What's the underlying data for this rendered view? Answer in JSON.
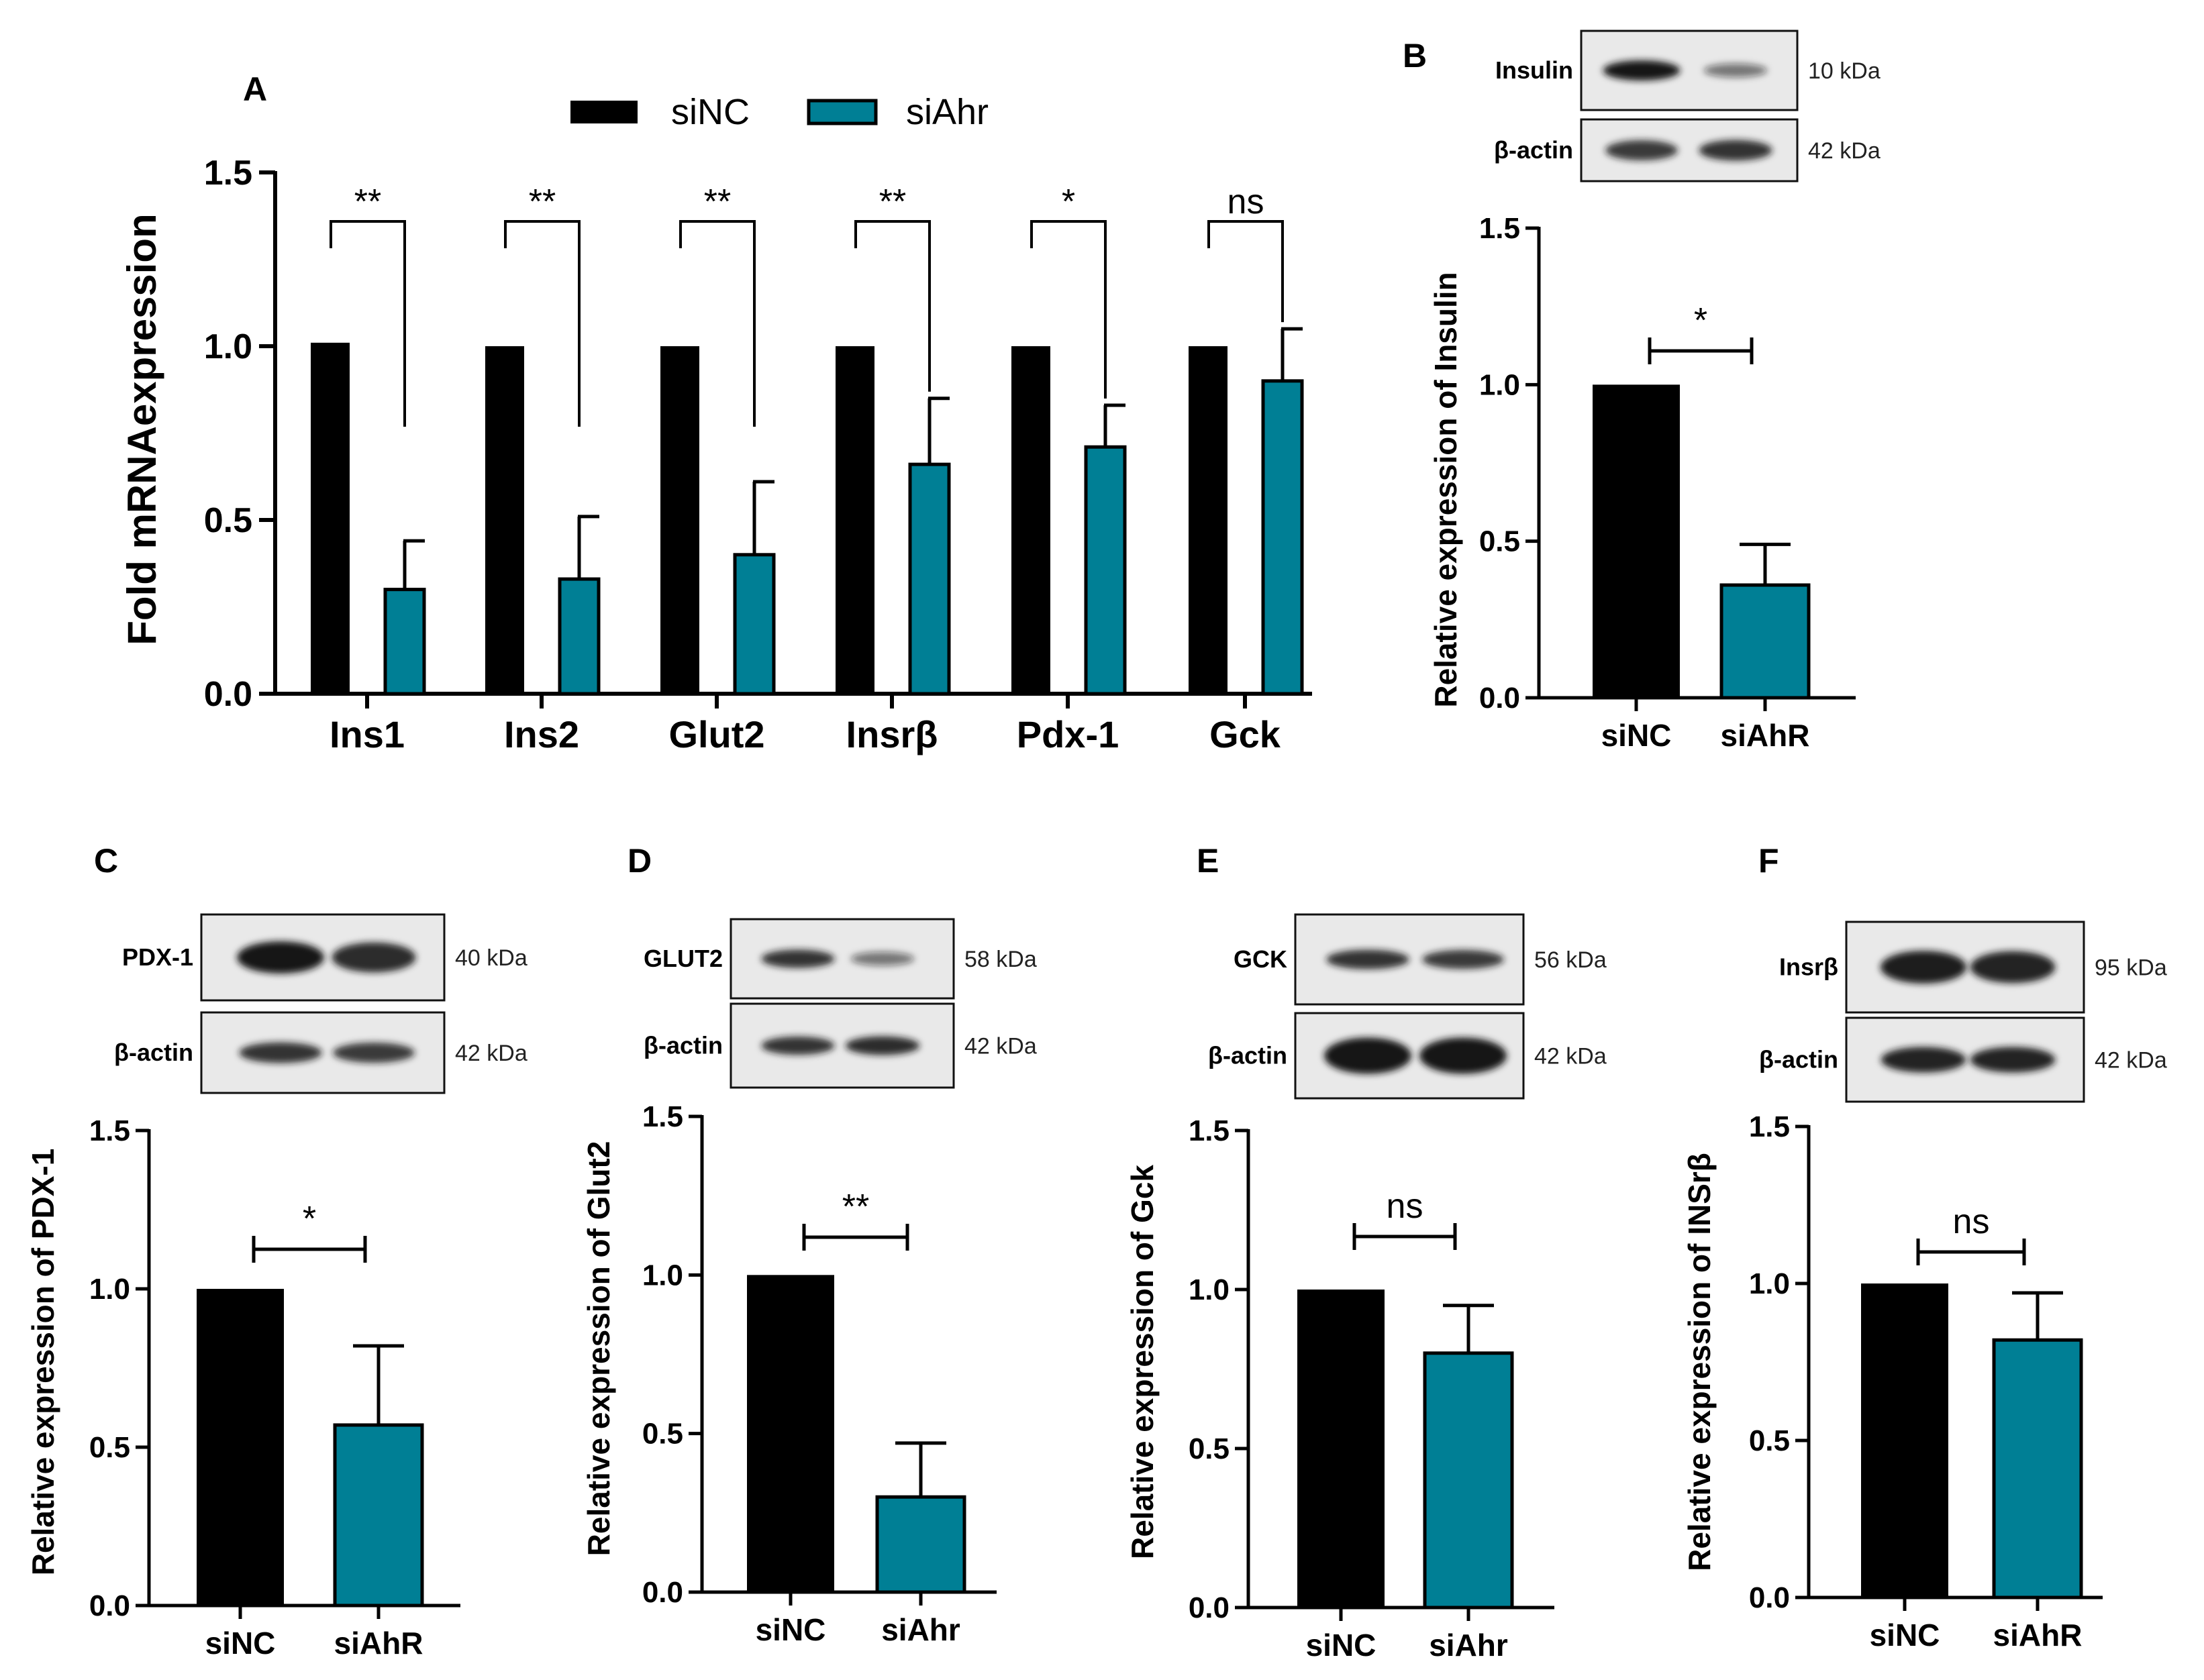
{
  "colors": {
    "siNC": "#000000",
    "siAhr": "#007f95",
    "blot_bg": "#e9e9e9",
    "band": "#161616"
  },
  "chart_data": [
    {
      "id": "A",
      "panel_label": "A",
      "type": "bar",
      "title": "",
      "ylabel": "Fold mRNAexpression",
      "xlabel": "",
      "ylim": [
        0,
        1.5
      ],
      "yticks": [
        "0.0",
        "0.5",
        "1.0",
        "1.5"
      ],
      "ytick_values": [
        0,
        0.5,
        1.0,
        1.5
      ],
      "categories": [
        "Ins1",
        "Ins2",
        "Glut2",
        "Insrβ",
        "Pdx-1",
        "Gck"
      ],
      "legend": {
        "placement": "top",
        "entries": [
          "siNC",
          "siAhr"
        ]
      },
      "series": [
        {
          "name": "siNC",
          "values": [
            1.01,
            1.0,
            1.0,
            1.0,
            1.0,
            1.0
          ],
          "errors": [
            0,
            0,
            0,
            0,
            0,
            0
          ]
        },
        {
          "name": "siAhr",
          "values": [
            0.3,
            0.33,
            0.4,
            0.66,
            0.71,
            0.9
          ],
          "errors": [
            0.14,
            0.18,
            0.21,
            0.19,
            0.12,
            0.15
          ]
        }
      ],
      "significance": [
        "**",
        "**",
        "**",
        "**",
        "*",
        "ns"
      ]
    },
    {
      "id": "B",
      "panel_label": "B",
      "type": "bar",
      "ylabel": "Relative expression of Insulin",
      "xlabel": "",
      "ylim": [
        0,
        1.5
      ],
      "yticks": [
        "0.0",
        "0.5",
        "1.0",
        "1.5"
      ],
      "ytick_values": [
        0,
        0.5,
        1.0,
        1.5
      ],
      "categories": [
        "siNC",
        "siAhR"
      ],
      "values": [
        1.0,
        0.36
      ],
      "errors": [
        0,
        0.13
      ],
      "significance": "*",
      "blot": {
        "rows": [
          {
            "label": "Insulin",
            "kda": "10 kDa",
            "bands": [
              1.0,
              0.3
            ]
          },
          {
            "label": "β-actin",
            "kda": "42 kDa",
            "bands": [
              0.75,
              0.8
            ]
          }
        ]
      }
    },
    {
      "id": "C",
      "panel_label": "C",
      "type": "bar",
      "ylabel": "Relative expression of PDX-1",
      "xlabel": "",
      "ylim": [
        0,
        1.5
      ],
      "yticks": [
        "0.0",
        "0.5",
        "1.0",
        "1.5"
      ],
      "ytick_values": [
        0,
        0.5,
        1.0,
        1.5
      ],
      "categories": [
        "siNC",
        "siAhR"
      ],
      "values": [
        1.0,
        0.57
      ],
      "errors": [
        0,
        0.25
      ],
      "significance": "*",
      "blot": {
        "rows": [
          {
            "label": "PDX-1",
            "kda": "40 kDa",
            "bands": [
              1.0,
              0.85
            ]
          },
          {
            "label": "β-actin",
            "kda": "42 kDa",
            "bands": [
              0.8,
              0.75
            ]
          }
        ]
      }
    },
    {
      "id": "D",
      "panel_label": "D",
      "type": "bar",
      "ylabel": "Relative expression of Glut2",
      "xlabel": "",
      "ylim": [
        0,
        1.5
      ],
      "yticks": [
        "0.0",
        "0.5",
        "1.0",
        "1.5"
      ],
      "ytick_values": [
        0,
        0.5,
        1.0,
        1.5
      ],
      "categories": [
        "siNC",
        "siAhr"
      ],
      "values": [
        1.0,
        0.3
      ],
      "errors": [
        0,
        0.17
      ],
      "significance": "**",
      "blot": {
        "rows": [
          {
            "label": "GLUT2",
            "kda": "58 kDa",
            "bands": [
              0.8,
              0.3
            ]
          },
          {
            "label": "β-actin",
            "kda": "42 kDa",
            "bands": [
              0.8,
              0.85
            ]
          }
        ]
      }
    },
    {
      "id": "E",
      "panel_label": "E",
      "type": "bar",
      "ylabel": "Relative expression of Gck",
      "xlabel": "",
      "ylim": [
        0,
        1.5
      ],
      "yticks": [
        "0.0",
        "0.5",
        "1.0",
        "1.5"
      ],
      "ytick_values": [
        0,
        0.5,
        1.0,
        1.5
      ],
      "categories": [
        "siNC",
        "siAhr"
      ],
      "values": [
        1.0,
        0.8
      ],
      "errors": [
        0,
        0.15
      ],
      "significance": "ns",
      "blot": {
        "rows": [
          {
            "label": "GCK",
            "kda": "56 kDa",
            "bands": [
              0.8,
              0.75
            ]
          },
          {
            "label": "β-actin",
            "kda": "42 kDa",
            "bands": [
              1.0,
              1.0
            ]
          }
        ]
      }
    },
    {
      "id": "F",
      "panel_label": "F",
      "type": "bar",
      "ylabel": "Relative expression of INSrβ",
      "xlabel": "",
      "ylim": [
        0,
        1.5
      ],
      "yticks": [
        "0.0",
        "0.5",
        "1.0",
        "1.5"
      ],
      "ytick_values": [
        0,
        0.5,
        1.0,
        1.5
      ],
      "categories": [
        "siNC",
        "siAhR"
      ],
      "values": [
        1.0,
        0.82
      ],
      "errors": [
        0,
        0.15
      ],
      "significance": "ns",
      "blot": {
        "rows": [
          {
            "label": "Insrβ",
            "kda": "95 kDa",
            "bands": [
              0.95,
              0.9
            ]
          },
          {
            "label": "β-actin",
            "kda": "42 kDa",
            "bands": [
              0.9,
              0.9
            ]
          }
        ]
      }
    }
  ]
}
